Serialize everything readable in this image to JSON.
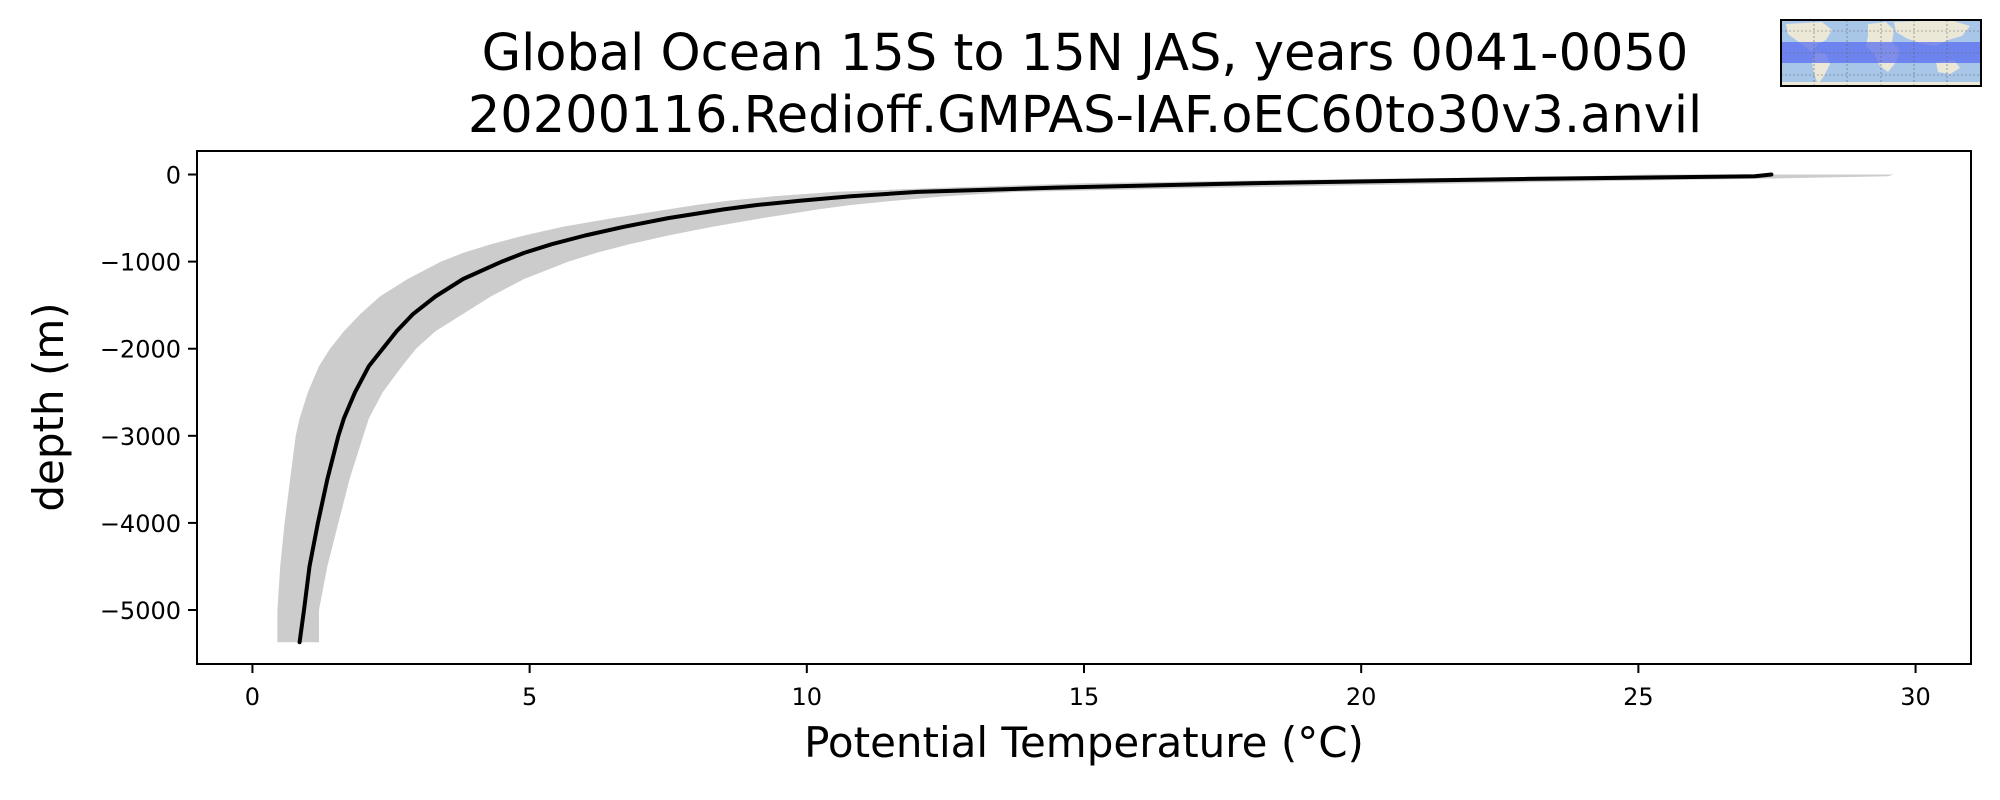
{
  "title_line1": "Global Ocean 15S to 15N JAS, years 0041-0050",
  "title_line2": "20200116.Redioff.GMPAS-IAF.oEC60to30v3.anvil",
  "inset_map": {
    "icon": "world-map-icon",
    "band_color": "#5a6ef0",
    "ocean_color": "#a8c6e8",
    "land_color": "#ece8d8"
  },
  "chart_data": {
    "type": "line",
    "title": "Global Ocean 15S to 15N JAS, years 0041-0050 20200116.Redioff.GMPAS-IAF.oEC60to30v3.anvil",
    "xlabel": "Potential Temperature (°C)",
    "ylabel": "depth (m)",
    "xlim": [
      -1,
      31
    ],
    "ylim": [
      -5620,
      270
    ],
    "x_ticks": [
      0,
      5,
      10,
      15,
      20,
      25,
      30
    ],
    "y_ticks": [
      0,
      -1000,
      -2000,
      -3000,
      -4000,
      -5000
    ],
    "x_tick_labels": [
      "0",
      "5",
      "10",
      "15",
      "20",
      "25",
      "30"
    ],
    "y_tick_labels": [
      "0",
      "−1000",
      "−2000",
      "−3000",
      "−4000",
      "−5000"
    ],
    "grid": false,
    "line_color": "#000000",
    "band_color": "#cccccc",
    "series": [
      {
        "depth": [
          0,
          -20,
          -50,
          -100,
          -150,
          -200,
          -250,
          -300,
          -350,
          -400,
          -500,
          -600,
          -700,
          -800,
          -900,
          -1000,
          -1200,
          -1400,
          -1600,
          -1800,
          -2000,
          -2200,
          -2500,
          -2800,
          -3000,
          -3500,
          -4000,
          -4500,
          -5000,
          -5370
        ],
        "values": [
          27.4,
          27.1,
          23.0,
          18.0,
          14.5,
          12.0,
          10.8,
          9.9,
          9.1,
          8.5,
          7.5,
          6.7,
          6.0,
          5.4,
          4.9,
          4.5,
          3.8,
          3.3,
          2.9,
          2.6,
          2.35,
          2.1,
          1.85,
          1.65,
          1.55,
          1.35,
          1.18,
          1.03,
          0.93,
          0.85
        ]
      }
    ],
    "band": {
      "depth": [
        0,
        -20,
        -50,
        -100,
        -150,
        -200,
        -250,
        -300,
        -350,
        -400,
        -500,
        -600,
        -700,
        -800,
        -900,
        -1000,
        -1200,
        -1400,
        -1600,
        -1800,
        -2000,
        -2200,
        -2500,
        -2800,
        -3000,
        -3500,
        -4000,
        -4500,
        -5000,
        -5370
      ],
      "lower": [
        25.2,
        24.0,
        20.0,
        15.0,
        12.5,
        10.5,
        9.4,
        8.6,
        8.0,
        7.5,
        6.5,
        5.6,
        4.9,
        4.3,
        3.8,
        3.4,
        2.8,
        2.3,
        1.95,
        1.65,
        1.4,
        1.2,
        1.0,
        0.85,
        0.78,
        0.68,
        0.58,
        0.5,
        0.45,
        0.45
      ],
      "upper": [
        29.6,
        29.5,
        27.0,
        22.0,
        17.5,
        13.8,
        12.5,
        11.6,
        10.8,
        10.2,
        9.2,
        8.3,
        7.5,
        6.8,
        6.2,
        5.7,
        4.9,
        4.3,
        3.8,
        3.3,
        2.95,
        2.7,
        2.35,
        2.1,
        2.0,
        1.75,
        1.55,
        1.35,
        1.2,
        1.2
      ]
    }
  }
}
